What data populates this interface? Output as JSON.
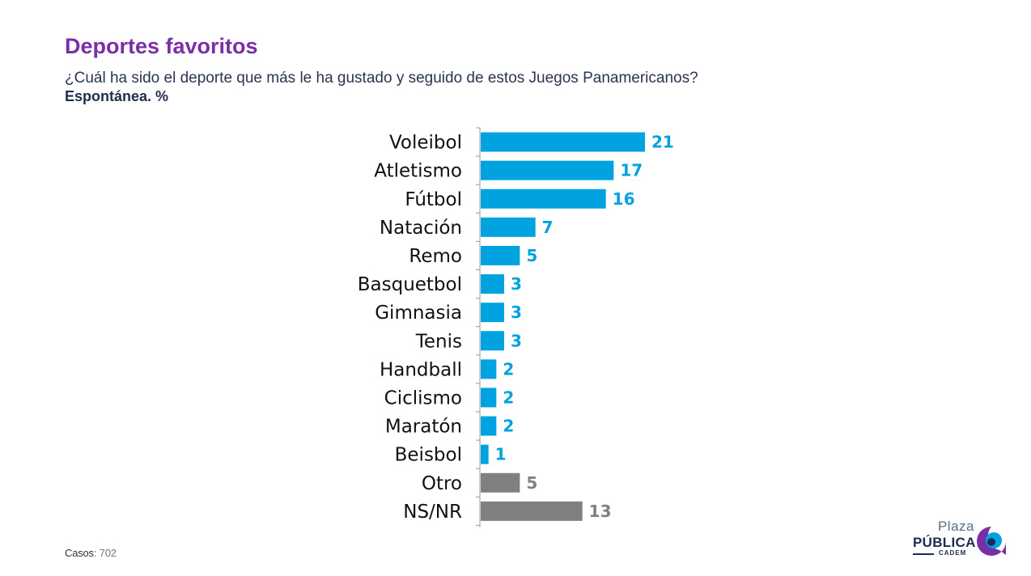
{
  "header": {
    "title": "Deportes favoritos",
    "subtitle": "¿Cuál ha sido el deporte que más le ha gustado y seguido de estos Juegos Panamericanos?",
    "note": "Espontánea. %"
  },
  "chart_data": {
    "type": "bar",
    "orientation": "horizontal",
    "categories": [
      "Voleibol",
      "Atletismo",
      "Fútbol",
      "Natación",
      "Remo",
      "Basquetbol",
      "Gimnasia",
      "Tenis",
      "Handball",
      "Ciclismo",
      "Maratón",
      "Beisbol",
      "Otro",
      "NS/NR"
    ],
    "values": [
      21,
      17,
      16,
      7,
      5,
      3,
      3,
      3,
      2,
      2,
      2,
      1,
      5,
      13
    ],
    "bar_colors": [
      "#00a2e0",
      "#00a2e0",
      "#00a2e0",
      "#00a2e0",
      "#00a2e0",
      "#00a2e0",
      "#00a2e0",
      "#00a2e0",
      "#00a2e0",
      "#00a2e0",
      "#00a2e0",
      "#00a2e0",
      "#808080",
      "#808080"
    ],
    "label_colors": [
      "#00a2e0",
      "#00a2e0",
      "#00a2e0",
      "#00a2e0",
      "#00a2e0",
      "#00a2e0",
      "#00a2e0",
      "#00a2e0",
      "#00a2e0",
      "#00a2e0",
      "#00a2e0",
      "#00a2e0",
      "#808080",
      "#808080"
    ],
    "xlim": [
      0,
      21
    ],
    "grid": false,
    "legend": "none",
    "data_labels": true
  },
  "footer": {
    "cases_label": "Casos",
    "cases_value": ": 702"
  },
  "logo": {
    "line1": "Plaza",
    "line2": "PÚBLICA",
    "line3": "CADEM",
    "colors": {
      "purple": "#7a2fa8",
      "blue": "#00a2e0",
      "navy": "#1c2a55"
    }
  }
}
